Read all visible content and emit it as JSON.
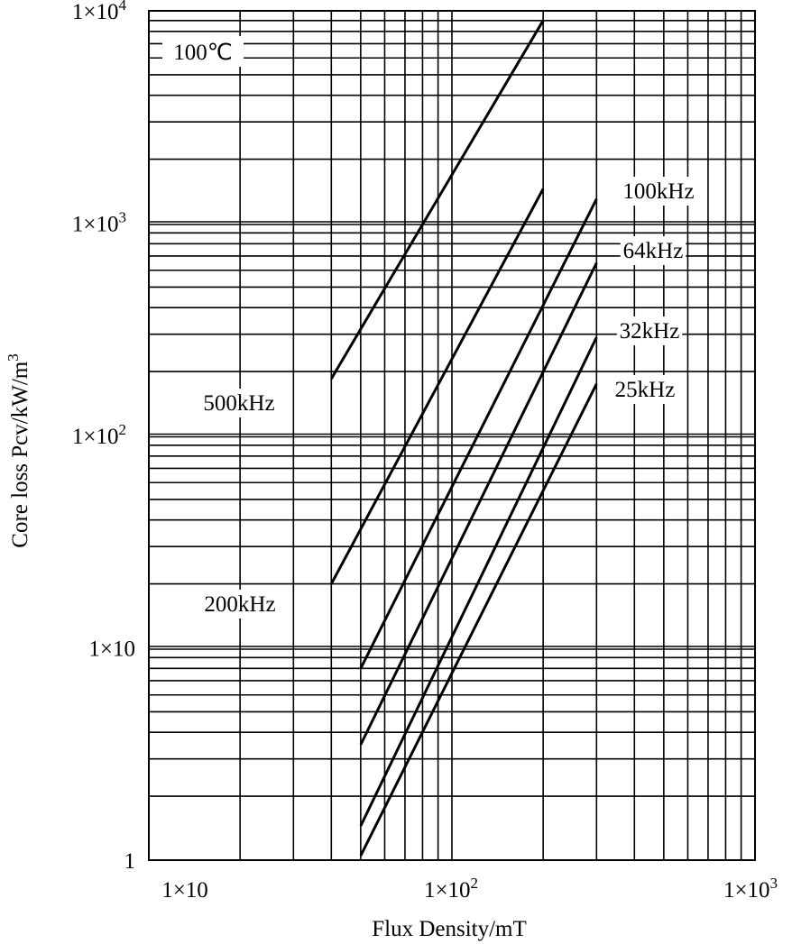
{
  "chart_data": {
    "type": "line",
    "title": "",
    "xlabel": "Flux Density/mT",
    "ylabel": "Core loss Pcv/kW/m",
    "ylabel_superscript": "3",
    "x_scale": "log",
    "y_scale": "log",
    "xlim": [
      10,
      1000
    ],
    "ylim": [
      1,
      10000
    ],
    "grid": true,
    "x_ticks": [
      {
        "value": 10,
        "base": "1×10",
        "exp": ""
      },
      {
        "value": 100,
        "base": "1×10",
        "exp": "2"
      },
      {
        "value": 1000,
        "base": "1×10",
        "exp": "3"
      }
    ],
    "y_ticks": [
      {
        "value": 1,
        "base": "1",
        "exp": ""
      },
      {
        "value": 10,
        "base": "1×10",
        "exp": ""
      },
      {
        "value": 100,
        "base": "1×10",
        "exp": "2"
      },
      {
        "value": 1000,
        "base": "1×10",
        "exp": "3"
      },
      {
        "value": 10000,
        "base": "1×10",
        "exp": "4"
      }
    ],
    "condition_label": "100℃",
    "series": [
      {
        "name": "500kHz",
        "x": [
          40,
          200
        ],
        "y": [
          185,
          9000
        ]
      },
      {
        "name": "200kHz",
        "x": [
          40,
          200
        ],
        "y": [
          20,
          1450
        ]
      },
      {
        "name": "100kHz",
        "x": [
          50,
          300
        ],
        "y": [
          8,
          1300
        ]
      },
      {
        "name": "64kHz",
        "x": [
          50,
          300
        ],
        "y": [
          3.5,
          650
        ]
      },
      {
        "name": "32kHz",
        "x": [
          50,
          300
        ],
        "y": [
          1.45,
          290
        ]
      },
      {
        "name": "25kHz",
        "x": [
          50,
          300
        ],
        "y": [
          1.05,
          175
        ]
      }
    ]
  }
}
